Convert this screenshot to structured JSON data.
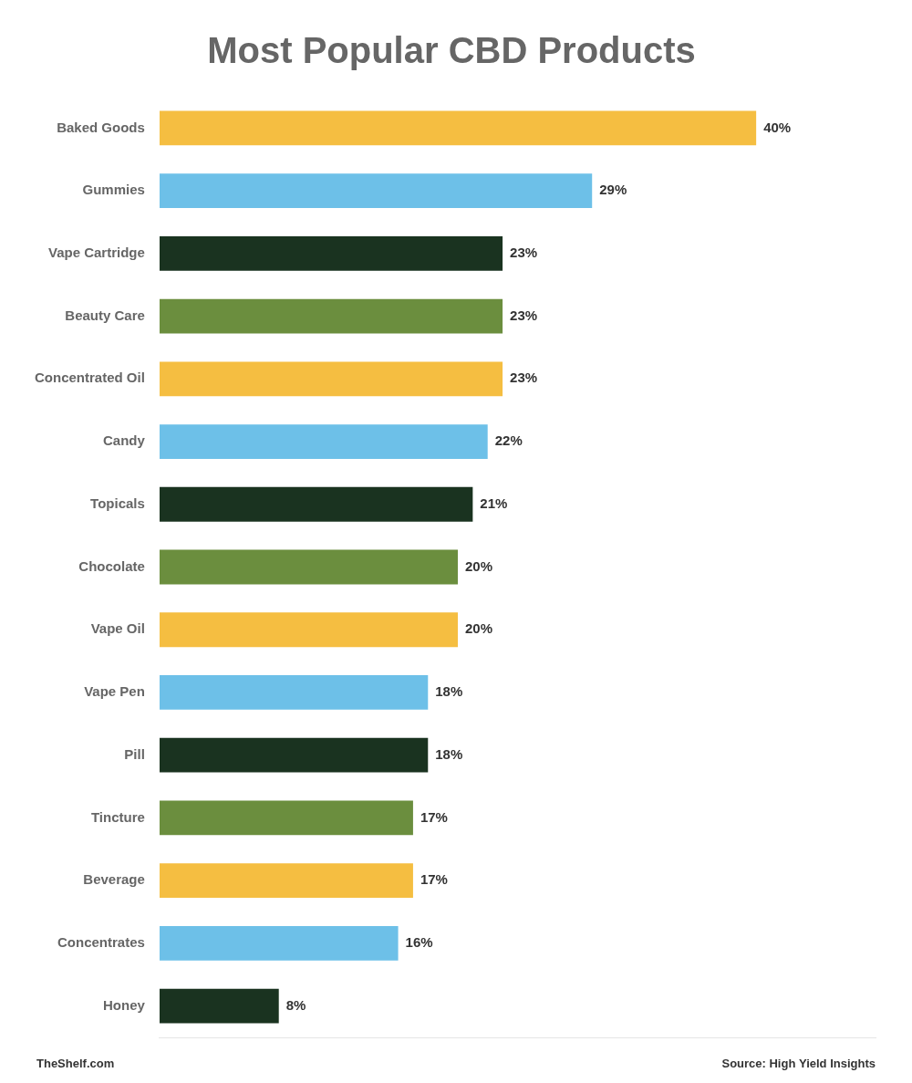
{
  "chart_data": {
    "type": "bar",
    "orientation": "horizontal",
    "title": "Most Popular CBD Products",
    "categories": [
      "Baked Goods",
      "Gummies",
      "Vape Cartridge",
      "Beauty Care",
      "Concentrated Oil",
      "Candy",
      "Topicals",
      "Chocolate",
      "Vape Oil",
      "Vape Pen",
      "Pill",
      "Tincture",
      "Beverage",
      "Concentrates",
      "Honey"
    ],
    "values": [
      40,
      29,
      23,
      23,
      23,
      22,
      21,
      20,
      20,
      18,
      18,
      17,
      17,
      16,
      8
    ],
    "value_labels": [
      "40%",
      "29%",
      "23%",
      "23%",
      "23%",
      "22%",
      "21%",
      "20%",
      "20%",
      "18%",
      "18%",
      "17%",
      "17%",
      "16%",
      "8%"
    ],
    "colors": [
      "#F5BE41",
      "#6DC0E8",
      "#1A3320",
      "#6B8E3E",
      "#F5BE41",
      "#6DC0E8",
      "#1A3320",
      "#6B8E3E",
      "#F5BE41",
      "#6DC0E8",
      "#1A3320",
      "#6B8E3E",
      "#F5BE41",
      "#6DC0E8",
      "#1A3320"
    ],
    "xlim": [
      0,
      48
    ],
    "data_labels": true,
    "tick_labels": "y",
    "grid": false,
    "annotations": [
      "TheShelf.com",
      "Source: High Yield Insights"
    ]
  }
}
